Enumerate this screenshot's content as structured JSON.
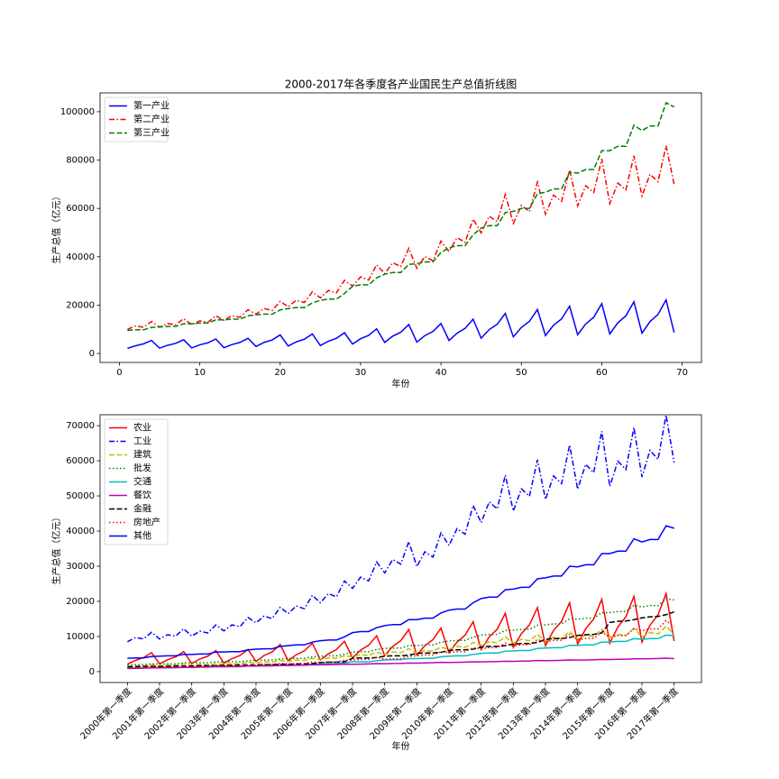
{
  "chart_data": [
    {
      "type": "line",
      "title": "2000-2017年各季度各产业国民生产总值折线图",
      "x_label": "年份",
      "y_label": "生产总值（亿元）",
      "x": [
        1,
        2,
        3,
        4,
        5,
        6,
        7,
        8,
        9,
        10,
        11,
        12,
        13,
        14,
        15,
        16,
        17,
        18,
        19,
        20,
        21,
        22,
        23,
        24,
        25,
        26,
        27,
        28,
        29,
        30,
        31,
        32,
        33,
        34,
        35,
        36,
        37,
        38,
        39,
        40,
        41,
        42,
        43,
        44,
        45,
        46,
        47,
        48,
        49,
        50,
        51,
        52,
        53,
        54,
        55,
        56,
        57,
        58,
        59,
        60,
        61,
        62,
        63,
        64,
        65,
        66,
        67,
        68,
        69
      ],
      "xlim": [
        -2.4,
        72.4
      ],
      "xticks": [
        0,
        10,
        20,
        30,
        40,
        50,
        60,
        70
      ],
      "ylim": [
        -3700,
        107800
      ],
      "yticks": [
        0,
        20000,
        40000,
        60000,
        80000,
        100000
      ],
      "legend": "upper left",
      "series": [
        {
          "name": "第一产业",
          "color": "#0000ff",
          "linestyle": "solid",
          "values": [
            2100,
            3200,
            4000,
            5400,
            2200,
            3400,
            4200,
            5700,
            2300,
            3600,
            4400,
            6000,
            2400,
            3700,
            4600,
            6300,
            2900,
            4600,
            5600,
            7700,
            3100,
            4800,
            5900,
            8100,
            3300,
            5100,
            6300,
            8600,
            3900,
            6100,
            7500,
            10200,
            4600,
            7200,
            8800,
            12000,
            4700,
            7400,
            9100,
            12400,
            5400,
            8400,
            10400,
            14200,
            6300,
            9900,
            12100,
            16600,
            6900,
            10800,
            13300,
            18200,
            7400,
            11700,
            14300,
            19600,
            7800,
            12200,
            15000,
            20600,
            8100,
            12700,
            15600,
            21400,
            8400,
            13200,
            16200,
            22200,
            8700
          ]
        },
        {
          "name": "第二产业",
          "color": "#ff0000",
          "linestyle": "dashdot",
          "values": [
            10000,
            11400,
            10900,
            13200,
            10900,
            12400,
            11900,
            14400,
            11900,
            13500,
            12900,
            15600,
            13700,
            15600,
            15000,
            18100,
            16300,
            18600,
            17800,
            21500,
            19400,
            22000,
            21100,
            25500,
            23000,
            26100,
            25100,
            30300,
            27900,
            31700,
            30400,
            36700,
            33000,
            37500,
            36000,
            43500,
            35200,
            40100,
            38400,
            46500,
            42200,
            47900,
            46000,
            55600,
            49900,
            56800,
            54500,
            65800,
            53800,
            61200,
            58700,
            70900,
            57600,
            65500,
            62900,
            75900,
            61100,
            69400,
            66600,
            80500,
            62000,
            70500,
            67700,
            81800,
            65200,
            74100,
            71100,
            85900,
            70000
          ]
        },
        {
          "name": "第三产业",
          "color": "#008000",
          "linestyle": "dashed",
          "values": [
            9600,
            9800,
            9800,
            10800,
            11000,
            11200,
            11200,
            12300,
            12300,
            12600,
            12600,
            13900,
            13900,
            14200,
            14200,
            15600,
            16000,
            16300,
            16300,
            18000,
            18600,
            19000,
            19000,
            20900,
            22000,
            22500,
            22500,
            24800,
            27800,
            28400,
            28400,
            31300,
            32800,
            33500,
            33500,
            36900,
            37100,
            37900,
            37900,
            41800,
            43700,
            44600,
            44600,
            49100,
            51900,
            52900,
            52900,
            58300,
            58800,
            60000,
            60000,
            66100,
            66700,
            68100,
            68100,
            75000,
            74600,
            76100,
            76100,
            83900,
            83900,
            85700,
            85700,
            94400,
            92200,
            94100,
            94100,
            103700,
            102000
          ]
        }
      ]
    },
    {
      "type": "line",
      "x_label": "年份",
      "y_label": "生产总值（亿元）",
      "categories": [
        "2000年第一季度",
        null,
        null,
        null,
        "2001年第一季度",
        null,
        null,
        null,
        "2002年第一季度",
        null,
        null,
        null,
        "2003年第一季度",
        null,
        null,
        null,
        "2004年第一季度",
        null,
        null,
        null,
        "2005年第一季度",
        null,
        null,
        null,
        "2006年第一季度",
        null,
        null,
        null,
        "2007年第一季度",
        null,
        null,
        null,
        "2008年第一季度",
        null,
        null,
        null,
        "2009年第一季度",
        null,
        null,
        null,
        "2010年第一季度",
        null,
        null,
        null,
        "2011年第一季度",
        null,
        null,
        null,
        "2012年第一季度",
        null,
        null,
        null,
        "2013年第一季度",
        null,
        null,
        null,
        "2014年第一季度",
        null,
        null,
        null,
        "2015年第一季度",
        null,
        null,
        null,
        "2016年第一季度",
        null,
        null,
        null,
        "2017年第一季度"
      ],
      "ylim": [
        -3100,
        73100
      ],
      "yticks": [
        0,
        10000,
        20000,
        30000,
        40000,
        50000,
        60000,
        70000
      ],
      "legend": "upper left",
      "series": [
        {
          "name": "农业",
          "color": "#ff0000",
          "linestyle": "solid",
          "values": [
            2100,
            3200,
            4000,
            5400,
            2200,
            3400,
            4200,
            5700,
            2300,
            3600,
            4400,
            6000,
            2400,
            3700,
            4600,
            6300,
            2900,
            4600,
            5600,
            7700,
            3100,
            4800,
            5900,
            8100,
            3300,
            5100,
            6300,
            8600,
            3900,
            6100,
            7500,
            10200,
            4600,
            7200,
            8800,
            12000,
            4700,
            7400,
            9100,
            12400,
            5400,
            8400,
            10400,
            14200,
            6300,
            9900,
            12100,
            16600,
            6900,
            10800,
            13300,
            18200,
            7400,
            11700,
            14300,
            19600,
            7800,
            12200,
            15000,
            20600,
            8100,
            12700,
            15600,
            21400,
            8400,
            13200,
            16200,
            22200,
            8700
          ]
        },
        {
          "name": "工业",
          "color": "#0000ff",
          "linestyle": "dashdot",
          "values": [
            8500,
            9700,
            9300,
            11200,
            9300,
            10500,
            10100,
            12200,
            10100,
            11500,
            11000,
            13300,
            11600,
            13300,
            12800,
            15400,
            13900,
            15800,
            15100,
            18300,
            16500,
            18700,
            17900,
            21700,
            19600,
            22200,
            21300,
            25800,
            23700,
            26900,
            25800,
            31200,
            28100,
            31900,
            30600,
            37000,
            29900,
            34100,
            32600,
            39500,
            35900,
            40700,
            39100,
            47300,
            42400,
            48300,
            46300,
            55900,
            45700,
            52000,
            49900,
            60300,
            49000,
            55700,
            53500,
            64500,
            51900,
            59000,
            56600,
            68400,
            52700,
            59900,
            57500,
            69500,
            55400,
            63000,
            60400,
            73000,
            59500
          ]
        },
        {
          "name": "建筑",
          "color": "#bfbf00",
          "linestyle": "dashed",
          "values": [
            1500,
            1700,
            1600,
            2000,
            1600,
            1900,
            1800,
            2200,
            1800,
            2000,
            1900,
            2300,
            2100,
            2300,
            2200,
            2700,
            2400,
            2800,
            2700,
            3200,
            2900,
            3300,
            3200,
            3800,
            3400,
            3900,
            3800,
            4500,
            4200,
            4800,
            4600,
            5500,
            4900,
            5600,
            5400,
            6500,
            5300,
            6000,
            5800,
            7000,
            6300,
            7200,
            6900,
            8300,
            7500,
            8500,
            8200,
            9900,
            8100,
            9200,
            8800,
            10600,
            8600,
            9800,
            9400,
            11400,
            9200,
            10400,
            10000,
            12100,
            9300,
            10600,
            10200,
            12300,
            9800,
            11100,
            10700,
            12900,
            10500
          ]
        },
        {
          "name": "批发",
          "color": "#008000",
          "linestyle": "dotted",
          "values": [
            1900,
            2000,
            2000,
            2200,
            2200,
            2200,
            2200,
            2500,
            2500,
            2500,
            2500,
            2800,
            2800,
            2800,
            2800,
            3100,
            3200,
            3300,
            3300,
            3600,
            3700,
            3800,
            3800,
            4200,
            4400,
            4500,
            4500,
            5000,
            5600,
            5700,
            5700,
            6300,
            6600,
            6700,
            6700,
            7400,
            7400,
            7600,
            7600,
            8400,
            8700,
            8900,
            8900,
            9800,
            10400,
            10600,
            10600,
            11700,
            11800,
            12000,
            12000,
            13200,
            13300,
            13600,
            13600,
            15000,
            14900,
            15200,
            15200,
            16800,
            16800,
            17100,
            17100,
            18900,
            18400,
            18800,
            18800,
            20700,
            20400
          ]
        },
        {
          "name": "交通",
          "color": "#00bfbf",
          "linestyle": "solid",
          "values": [
            1000,
            1000,
            1000,
            1100,
            1100,
            1100,
            1100,
            1200,
            1200,
            1300,
            1300,
            1400,
            1400,
            1400,
            1400,
            1600,
            1600,
            1600,
            1600,
            1800,
            1900,
            1900,
            1900,
            2100,
            2200,
            2300,
            2300,
            2500,
            2800,
            2800,
            2800,
            3100,
            3300,
            3400,
            3400,
            3700,
            3700,
            3800,
            3800,
            4200,
            4400,
            4500,
            4500,
            4900,
            5200,
            5300,
            5300,
            5800,
            5900,
            6000,
            6000,
            6600,
            6700,
            6800,
            6800,
            7500,
            7500,
            7600,
            7600,
            8400,
            8400,
            8600,
            8600,
            9400,
            9200,
            9400,
            9400,
            10400,
            10200
          ]
        },
        {
          "name": "餐饮",
          "color": "#bf00bf",
          "linestyle": "solid",
          "values": [
            900,
            950,
            1000,
            1100,
            1070,
            1120,
            1170,
            1270,
            1240,
            1290,
            1340,
            1440,
            1410,
            1460,
            1510,
            1610,
            1580,
            1630,
            1680,
            1780,
            1750,
            1800,
            1850,
            1950,
            1920,
            1970,
            2020,
            2120,
            2090,
            2140,
            2190,
            2290,
            2260,
            2310,
            2360,
            2460,
            2430,
            2480,
            2530,
            2630,
            2600,
            2650,
            2700,
            2800,
            2770,
            2820,
            2870,
            2970,
            2940,
            2990,
            3040,
            3140,
            3110,
            3160,
            3210,
            3310,
            3280,
            3330,
            3380,
            3480,
            3450,
            3500,
            3550,
            3650,
            3620,
            3670,
            3720,
            3820,
            3700
          ]
        },
        {
          "name": "金融",
          "color": "#000000",
          "linestyle": "dashed",
          "values": [
            1400,
            1400,
            1500,
            1500,
            1500,
            1500,
            1600,
            1600,
            1600,
            1700,
            1700,
            1700,
            1800,
            1800,
            1900,
            1900,
            1900,
            2000,
            2000,
            2100,
            2100,
            2200,
            2200,
            2300,
            2600,
            2700,
            2700,
            2800,
            3800,
            3900,
            3900,
            4000,
            4400,
            4500,
            4500,
            4700,
            5200,
            5300,
            5300,
            5500,
            6000,
            6200,
            6200,
            6400,
            7000,
            7200,
            7200,
            7400,
            7800,
            8000,
            8000,
            8300,
            9200,
            9400,
            9400,
            9700,
            10300,
            10500,
            10600,
            11000,
            14000,
            14300,
            14400,
            14800,
            15300,
            15600,
            15700,
            16200,
            17000
          ]
        },
        {
          "name": "房地产",
          "color": "#ff0000",
          "linestyle": "dotted",
          "values": [
            1000,
            1050,
            1050,
            1250,
            1200,
            1260,
            1260,
            1500,
            1400,
            1470,
            1470,
            1750,
            1600,
            1680,
            1680,
            2000,
            1900,
            2000,
            2000,
            2380,
            2200,
            2310,
            2310,
            2750,
            2600,
            2730,
            2730,
            3250,
            3300,
            3470,
            3470,
            4130,
            3500,
            3680,
            3680,
            4380,
            4500,
            4730,
            4730,
            5630,
            5400,
            5670,
            5670,
            6750,
            6500,
            6830,
            6830,
            8130,
            7300,
            7670,
            7670,
            9130,
            8500,
            8930,
            8930,
            10630,
            9000,
            9450,
            9450,
            11250,
            9800,
            10290,
            10290,
            12250,
            11600,
            12180,
            12180,
            14500,
            12800
          ]
        },
        {
          "name": "其他",
          "color": "#0000ff",
          "linestyle": "solid",
          "values": [
            3800,
            3900,
            3900,
            4300,
            4400,
            4500,
            4500,
            4900,
            4900,
            5000,
            5000,
            5600,
            5600,
            5700,
            5700,
            6200,
            6400,
            6500,
            6500,
            7200,
            7400,
            7600,
            7600,
            8400,
            8800,
            9000,
            9000,
            9900,
            11100,
            11400,
            11400,
            12500,
            13100,
            13400,
            13400,
            14800,
            14800,
            15200,
            15200,
            16700,
            17500,
            17800,
            17800,
            19600,
            20800,
            21200,
            21200,
            23300,
            23500,
            24000,
            24000,
            26400,
            26700,
            27200,
            27200,
            30000,
            29800,
            30400,
            30400,
            33600,
            33600,
            34300,
            34300,
            37800,
            36900,
            37600,
            37600,
            41500,
            40800
          ]
        }
      ]
    }
  ]
}
